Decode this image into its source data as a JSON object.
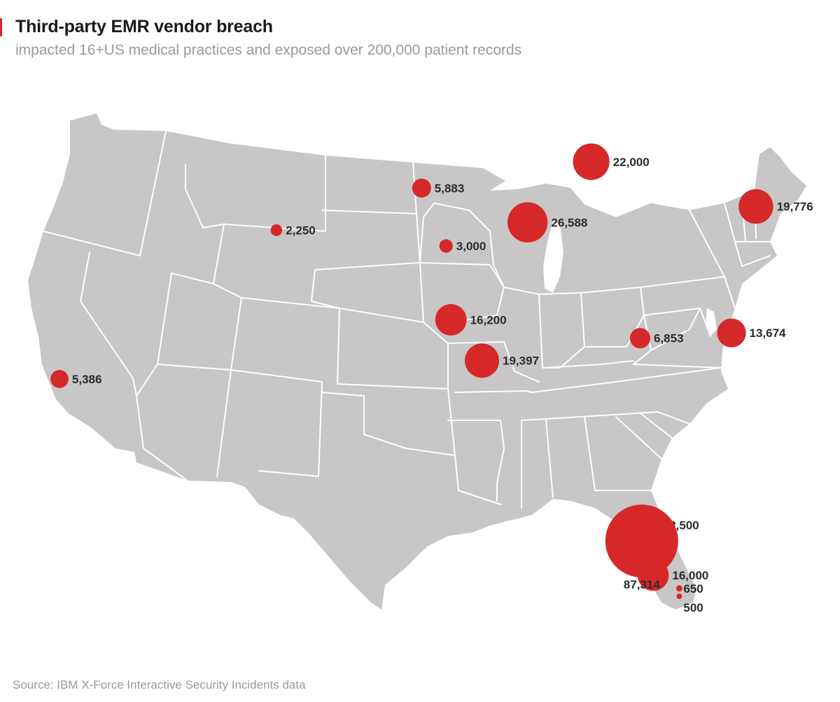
{
  "header": {
    "title": "Third-party EMR vendor breach",
    "subtitle": "impacted 16+US medical practices and exposed over 200,000 patient records"
  },
  "footer": {
    "source": "Source: IBM X-Force Interactive Security Incidents data"
  },
  "colors": {
    "accent": "#d62828",
    "land": "#c8c6c7",
    "border": "#ffffff"
  },
  "map": {
    "region": "Contiguous United States",
    "marker_type": "proportional-circle",
    "points": [
      {
        "label": "22,000",
        "value": 22000,
        "lon": -85.6,
        "lat": 42.3
      },
      {
        "label": "19,776",
        "value": 19776,
        "lon": -75.5,
        "lat": 40.6
      },
      {
        "label": "26,588",
        "value": 26588,
        "lon": -89.5,
        "lat": 40.0
      },
      {
        "label": "5,883",
        "value": 5883,
        "lon": -96.0,
        "lat": 41.3
      },
      {
        "label": "3,000",
        "value": 3000,
        "lon": -94.5,
        "lat": 39.1
      },
      {
        "label": "2,250",
        "value": 2250,
        "lon": -104.9,
        "lat": 39.7
      },
      {
        "label": "5,386",
        "value": 5386,
        "lon": -118.2,
        "lat": 34.05
      },
      {
        "label": "6,853",
        "value": 6853,
        "lon": -82.6,
        "lat": 35.6
      },
      {
        "label": "13,674",
        "value": 13674,
        "lon": -77.0,
        "lat": 35.8
      },
      {
        "label": "16,200",
        "value": 16200,
        "lon": -94.2,
        "lat": 36.3
      },
      {
        "label": "19,397",
        "value": 19397,
        "lon": -92.3,
        "lat": 34.75
      },
      {
        "label": "2,500",
        "value": 2500,
        "lon": -81.4,
        "lat": 28.5
      },
      {
        "label": "16,000",
        "value": 16000,
        "lon": -81.8,
        "lat": 26.6
      },
      {
        "label": "650",
        "value": 650,
        "lon": -80.2,
        "lat": 26.1
      },
      {
        "label": "500",
        "value": 500,
        "lon": -80.2,
        "lat": 25.8
      },
      {
        "label": "87,314",
        "value": 87314,
        "lon": -82.5,
        "lat": 27.9
      }
    ]
  }
}
